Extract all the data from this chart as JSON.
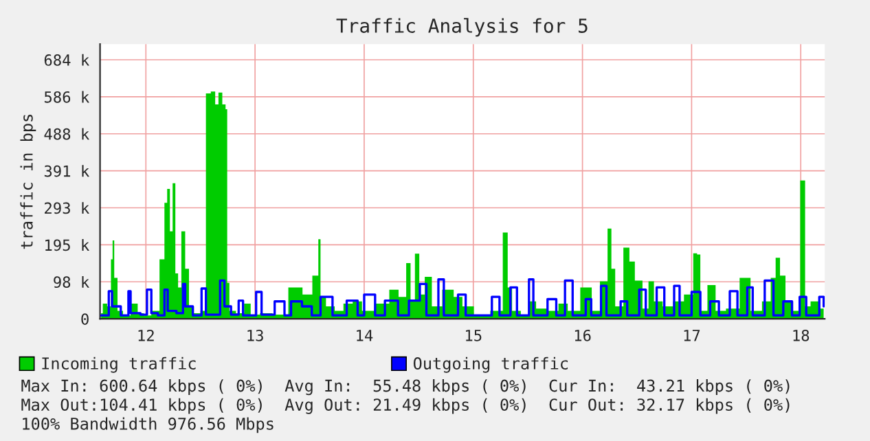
{
  "chart_data": {
    "type": "area",
    "title": "Traffic Analysis for 5",
    "ylabel": "traffic in bps",
    "xlim": [
      11.58,
      18.22
    ],
    "xticks": [
      12,
      13,
      14,
      15,
      16,
      17,
      18
    ],
    "ylim": [
      0,
      725
    ],
    "yticks": [
      {
        "value": 0,
        "label": "0"
      },
      {
        "value": 97.7,
        "label": "98 k"
      },
      {
        "value": 195.3,
        "label": "195 k"
      },
      {
        "value": 293,
        "label": "293 k"
      },
      {
        "value": 390.6,
        "label": "391 k"
      },
      {
        "value": 488.3,
        "label": "488 k"
      },
      {
        "value": 586,
        "label": "586 k"
      },
      {
        "value": 683.6,
        "label": "684 k"
      }
    ],
    "grid": true,
    "legend": "bottom",
    "series": [
      {
        "name": "Incoming traffic",
        "color": "#00cc00",
        "x": [
          11.59,
          11.62,
          11.67,
          11.69,
          11.7,
          11.72,
          11.76,
          11.82,
          11.9,
          11.95,
          12.01,
          12.09,
          12.16,
          12.18,
          12.21,
          12.23,
          12.26,
          12.28,
          12.31,
          12.34,
          12.38,
          12.41,
          12.47,
          12.53,
          12.57,
          12.62,
          12.65,
          12.68,
          12.72,
          12.74,
          12.75,
          12.78,
          12.87,
          12.93,
          12.99,
          13.1,
          13.22,
          13.39,
          13.48,
          13.57,
          13.59,
          13.61,
          13.69,
          13.77,
          13.85,
          13.94,
          14.02,
          14.19,
          14.27,
          14.36,
          14.41,
          14.44,
          14.49,
          14.52,
          14.59,
          14.65,
          14.78,
          14.86,
          14.94,
          15.07,
          15.24,
          15.3,
          15.33,
          15.38,
          15.49,
          15.54,
          15.61,
          15.74,
          15.82,
          15.91,
          16.05,
          16.12,
          16.2,
          16.26,
          16.27,
          16.33,
          16.42,
          16.44,
          16.52,
          16.58,
          16.63,
          16.68,
          16.79,
          16.87,
          16.99,
          17.04,
          17.06,
          17.1,
          17.19,
          17.25,
          17.38,
          17.5,
          17.58,
          17.71,
          17.74,
          17.8,
          17.82,
          17.9,
          17.96,
          18.03,
          18.05,
          18.13,
          18.21
        ],
        "values": [
          15,
          40,
          33,
          157,
          207,
          108,
          21,
          9,
          40,
          15,
          9,
          21,
          157,
          306,
          343,
          231,
          358,
          120,
          83,
          231,
          132,
          33,
          15,
          21,
          595,
          600,
          566,
          597,
          566,
          553,
          95,
          21,
          15,
          40,
          11,
          15,
          11,
          83,
          64,
          114,
          210,
          58,
          33,
          21,
          40,
          46,
          21,
          40,
          77,
          58,
          147,
          46,
          172,
          64,
          111,
          33,
          77,
          58,
          33,
          9,
          21,
          228,
          83,
          21,
          9,
          46,
          27,
          21,
          40,
          21,
          83,
          21,
          99,
          238,
          132,
          33,
          188,
          151,
          101,
          27,
          99,
          46,
          33,
          46,
          64,
          173,
          170,
          21,
          89,
          21,
          27,
          108,
          21,
          46,
          108,
          161,
          114,
          46,
          21,
          365,
          33,
          46,
          27
        ]
      },
      {
        "name": "Outgoing traffic",
        "type": "step",
        "color": "#0000ff",
        "x": [
          11.59,
          11.66,
          11.69,
          11.74,
          11.77,
          11.84,
          11.86,
          11.95,
          12.01,
          12.05,
          12.11,
          12.17,
          12.2,
          12.28,
          12.34,
          12.36,
          12.43,
          12.51,
          12.55,
          12.68,
          12.72,
          12.78,
          12.85,
          12.89,
          13.01,
          13.06,
          13.18,
          13.27,
          13.33,
          13.43,
          13.52,
          13.6,
          13.71,
          13.84,
          13.94,
          14.0,
          14.1,
          14.19,
          14.31,
          14.41,
          14.51,
          14.57,
          14.68,
          14.73,
          14.86,
          14.93,
          15.07,
          15.17,
          15.24,
          15.34,
          15.4,
          15.51,
          15.55,
          15.68,
          15.76,
          15.84,
          15.91,
          16.03,
          16.08,
          16.17,
          16.22,
          16.35,
          16.41,
          16.52,
          16.58,
          16.68,
          16.75,
          16.84,
          16.89,
          17.0,
          17.08,
          17.17,
          17.25,
          17.35,
          17.42,
          17.51,
          17.56,
          17.67,
          17.75,
          17.84,
          17.92,
          17.99,
          18.05,
          18.17,
          18.21
        ],
        "values": [
          9,
          73,
          33,
          33,
          9,
          73,
          15,
          11,
          77,
          15,
          9,
          77,
          21,
          15,
          92,
          33,
          9,
          80,
          11,
          101,
          33,
          11,
          48,
          9,
          71,
          11,
          46,
          9,
          46,
          33,
          9,
          58,
          9,
          48,
          9,
          64,
          9,
          48,
          9,
          48,
          92,
          9,
          104,
          9,
          64,
          9,
          9,
          58,
          9,
          83,
          9,
          104,
          9,
          52,
          9,
          101,
          9,
          52,
          9,
          87,
          9,
          46,
          9,
          77,
          9,
          83,
          9,
          87,
          9,
          71,
          9,
          46,
          9,
          73,
          9,
          83,
          9,
          101,
          9,
          46,
          9,
          58,
          9,
          58,
          33
        ]
      }
    ],
    "annotations": [
      "Max In: 600.64 kbps ( 0%)  Avg In:  55.48 kbps ( 0%)  Cur In:  43.21 kbps ( 0%)",
      "Max Out:104.41 kbps ( 0%)  Avg Out: 21.49 kbps ( 0%)  Cur Out: 32.17 kbps ( 0%)",
      "100% Bandwidth 976.56 Mbps"
    ]
  }
}
